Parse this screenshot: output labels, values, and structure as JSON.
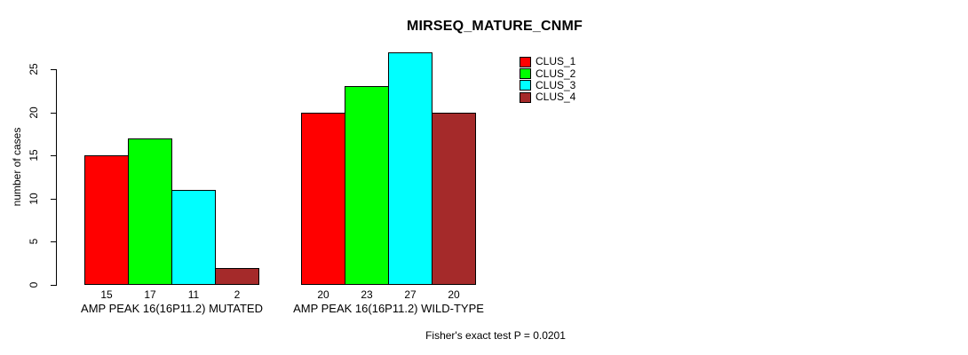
{
  "chart_data": {
    "type": "bar",
    "title": "MIRSEQ_MATURE_CNMF",
    "ylabel": "number of cases",
    "xlabel": "",
    "ylim": [
      0,
      25
    ],
    "yticks": [
      0,
      5,
      10,
      15,
      20,
      25
    ],
    "grid": false,
    "legend_position": "top-right",
    "categories": [
      "AMP PEAK 16(16P11.2) MUTATED",
      "AMP PEAK 16(16P11.2) WILD-TYPE"
    ],
    "series": [
      {
        "name": "CLUS_1",
        "color": "#FF0000",
        "values": [
          15,
          20
        ]
      },
      {
        "name": "CLUS_2",
        "color": "#00FF00",
        "values": [
          17,
          23
        ]
      },
      {
        "name": "CLUS_3",
        "color": "#00FFFF",
        "values": [
          11,
          27
        ]
      },
      {
        "name": "CLUS_4",
        "color": "#A52A2A",
        "values": [
          2,
          20
        ]
      }
    ],
    "show_bar_values": true,
    "annotation": "Fisher's exact test P = 0.0201"
  },
  "colors": {
    "background": "#FFFFFF",
    "axis": "#000000",
    "bar_border": "#000000",
    "text": "#000000"
  }
}
